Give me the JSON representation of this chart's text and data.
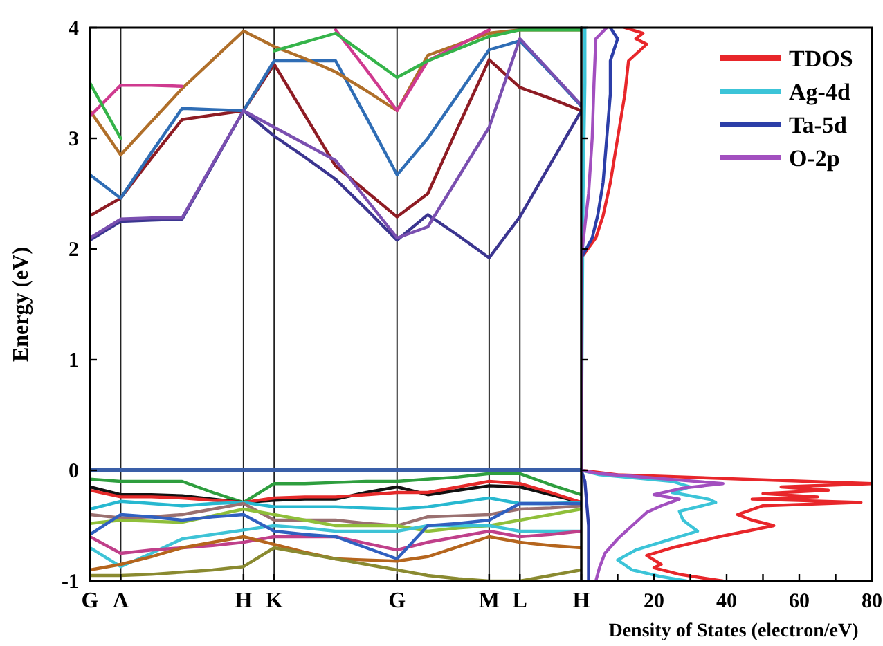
{
  "chart_data": [
    {
      "type": "line",
      "ylabel": "Energy (eV)",
      "ylim": [
        -1,
        4
      ],
      "yticks": [
        -1,
        0,
        1,
        2,
        3,
        4
      ],
      "categories": [
        "G",
        "Λ",
        null,
        null,
        null,
        "H",
        "K",
        null,
        null,
        null,
        "G",
        null,
        null,
        "M",
        "L",
        null,
        "H"
      ],
      "grid": "x",
      "legend": false,
      "line_style": "solid",
      "marker": "none",
      "ref_lines": [
        {
          "axis": "y",
          "value": 0,
          "color": "#3a5fa8"
        }
      ],
      "series": [
        {
          "color": "#3b3590",
          "values": [
            2.08,
            2.25,
            2.26,
            2.27,
            2.76,
            3.25,
            3.02,
            2.83,
            2.63,
            2.36,
            2.08,
            2.31,
            2.12,
            1.92,
            2.29,
            2.77,
            3.25
          ]
        },
        {
          "color": "#8e1c24",
          "values": [
            2.3,
            2.46,
            2.82,
            3.17,
            3.21,
            3.25,
            3.67,
            3.21,
            2.75,
            2.52,
            2.29,
            2.5,
            3.11,
            3.71,
            3.46,
            3.36,
            3.25
          ]
        },
        {
          "color": "#2f6db5",
          "values": [
            2.67,
            2.46,
            2.87,
            3.27,
            3.26,
            3.25,
            3.7,
            3.7,
            3.7,
            3.19,
            2.67,
            3.0,
            3.4,
            3.8,
            3.88,
            3.59,
            3.29
          ]
        },
        {
          "color": "#b06f2a",
          "values": [
            3.25,
            2.85,
            3.15,
            3.45,
            3.71,
            3.97,
            3.83,
            3.72,
            3.6,
            3.43,
            3.25,
            3.75,
            3.85,
            3.95,
            3.98,
            3.98,
            3.98
          ]
        },
        {
          "color": "#cf3a8f",
          "values": [
            3.2,
            3.48,
            3.48,
            3.47,
            null,
            null,
            null,
            null,
            3.98,
            3.62,
            3.25,
            3.7,
            3.84,
            3.98,
            null,
            null,
            null
          ]
        },
        {
          "color": "#35b44a",
          "values": [
            3.5,
            3.0,
            null,
            null,
            null,
            null,
            3.79,
            3.87,
            3.95,
            3.75,
            3.55,
            3.7,
            3.81,
            3.92,
            3.98,
            3.98,
            3.98
          ]
        },
        {
          "color": "#7a4fb0",
          "values": [
            2.1,
            2.27,
            2.28,
            2.28,
            2.77,
            3.25,
            3.1,
            2.95,
            2.8,
            2.45,
            2.1,
            2.2,
            2.65,
            3.1,
            3.9,
            3.6,
            3.3
          ]
        },
        {
          "color": "#2e9e3e",
          "values": [
            -0.08,
            -0.1,
            -0.1,
            -0.1,
            -0.2,
            -0.29,
            -0.12,
            -0.12,
            -0.11,
            -0.1,
            -0.1,
            -0.08,
            -0.06,
            -0.03,
            -0.03,
            -0.13,
            -0.22
          ]
        },
        {
          "color": "#111111",
          "values": [
            -0.15,
            -0.22,
            -0.22,
            -0.23,
            -0.26,
            -0.29,
            -0.27,
            -0.26,
            -0.26,
            -0.2,
            -0.15,
            -0.22,
            -0.18,
            -0.14,
            -0.15,
            -0.22,
            -0.29
          ]
        },
        {
          "color": "#e52a2a",
          "values": [
            -0.18,
            -0.24,
            -0.24,
            -0.25,
            -0.27,
            -0.29,
            -0.25,
            -0.24,
            -0.24,
            -0.22,
            -0.2,
            -0.2,
            -0.15,
            -0.1,
            -0.12,
            -0.2,
            -0.29
          ]
        },
        {
          "color": "#27b8d0",
          "values": [
            -0.35,
            -0.28,
            -0.3,
            -0.32,
            -0.3,
            -0.29,
            -0.33,
            -0.33,
            -0.33,
            -0.34,
            -0.35,
            -0.33,
            -0.29,
            -0.25,
            -0.3,
            -0.3,
            -0.29
          ]
        },
        {
          "color": "#9a7070",
          "values": [
            -0.4,
            -0.43,
            -0.42,
            -0.4,
            -0.35,
            -0.3,
            -0.45,
            -0.45,
            -0.45,
            -0.48,
            -0.5,
            -0.42,
            -0.41,
            -0.4,
            -0.35,
            -0.34,
            -0.32
          ]
        },
        {
          "color": "#8fbf3a",
          "values": [
            -0.48,
            -0.45,
            -0.46,
            -0.47,
            -0.41,
            -0.35,
            -0.4,
            -0.45,
            -0.5,
            -0.5,
            -0.5,
            -0.55,
            -0.52,
            -0.5,
            -0.45,
            -0.4,
            -0.35
          ]
        },
        {
          "color": "#3ec3d6",
          "values": [
            -0.7,
            -0.87,
            -0.75,
            -0.62,
            -0.58,
            -0.54,
            -0.5,
            -0.52,
            -0.55,
            -0.55,
            -0.55,
            -0.5,
            -0.5,
            -0.5,
            -0.55,
            -0.55,
            -0.55
          ]
        },
        {
          "color": "#c0408a",
          "values": [
            -0.6,
            -0.75,
            -0.72,
            -0.7,
            -0.68,
            -0.65,
            -0.6,
            -0.6,
            -0.6,
            -0.66,
            -0.72,
            -0.65,
            -0.6,
            -0.55,
            -0.6,
            -0.58,
            -0.55
          ]
        },
        {
          "color": "#3060c0",
          "values": [
            -0.58,
            -0.4,
            -0.42,
            -0.45,
            -0.42,
            -0.4,
            -0.55,
            -0.58,
            -0.6,
            -0.7,
            -0.8,
            -0.5,
            -0.48,
            -0.45,
            -0.3,
            -0.3,
            -0.3
          ]
        },
        {
          "color": "#b5651d",
          "values": [
            -0.9,
            -0.85,
            -0.78,
            -0.7,
            -0.65,
            -0.6,
            -0.67,
            -0.74,
            -0.8,
            -0.81,
            -0.82,
            -0.78,
            -0.69,
            -0.6,
            -0.65,
            -0.68,
            -0.7
          ]
        },
        {
          "color": "#8a8a30",
          "values": [
            -0.95,
            -0.95,
            -0.94,
            -0.92,
            -0.9,
            -0.87,
            -0.7,
            -0.75,
            -0.8,
            -0.85,
            -0.9,
            -0.95,
            -0.98,
            -1.0,
            -1.0,
            -0.95,
            -0.9
          ]
        }
      ]
    },
    {
      "type": "line",
      "xlabel": "Density of States (electron/eV)",
      "xlim": [
        0,
        80
      ],
      "ylim": [
        -1,
        4
      ],
      "xticks": [
        {
          "value": 10,
          "label": null
        },
        20,
        {
          "value": 30,
          "label": null
        },
        40,
        {
          "value": 50,
          "label": null
        },
        60,
        {
          "value": 70,
          "label": null
        },
        80
      ],
      "yticks": [
        -1,
        0,
        1,
        2,
        3,
        4
      ],
      "tick_labels": "x",
      "legend": "top right",
      "line_style": "solid",
      "marker": "none",
      "series": [
        {
          "name": "TDOS",
          "color": "#e8262a",
          "x": [
            39,
            27,
            20,
            22,
            18,
            25,
            38,
            53,
            47,
            43,
            50,
            77,
            47,
            65,
            50,
            68,
            55,
            80,
            10,
            0,
            0,
            4,
            6,
            8,
            10,
            12,
            13,
            18,
            15,
            17,
            12
          ],
          "values": [
            -1.0,
            -0.94,
            -0.88,
            -0.85,
            -0.77,
            -0.7,
            -0.6,
            -0.5,
            -0.45,
            -0.4,
            -0.32,
            -0.29,
            -0.26,
            -0.24,
            -0.21,
            -0.18,
            -0.15,
            -0.12,
            -0.04,
            0,
            1.92,
            2.1,
            2.3,
            2.6,
            3.0,
            3.4,
            3.7,
            3.85,
            3.9,
            3.95,
            4.0
          ]
        },
        {
          "name": "Ag-4d",
          "color": "#3cc4d8",
          "x": [
            29,
            22,
            14,
            10,
            15,
            25,
            32,
            28,
            27,
            37,
            35,
            25,
            30,
            25,
            5,
            0,
            0.5,
            1,
            1
          ],
          "values": [
            -1.0,
            -0.96,
            -0.9,
            -0.81,
            -0.72,
            -0.62,
            -0.55,
            -0.45,
            -0.37,
            -0.29,
            -0.26,
            -0.2,
            -0.15,
            -0.1,
            -0.04,
            0,
            2.5,
            3.5,
            4.0
          ]
        },
        {
          "name": "Ta-5d",
          "color": "#2c3ea8",
          "x": [
            2,
            2,
            1,
            0,
            0,
            3,
            4.5,
            6,
            7,
            8,
            8,
            10,
            8
          ],
          "values": [
            -1.0,
            -0.5,
            -0.1,
            0,
            1.92,
            2.1,
            2.3,
            2.6,
            3.0,
            3.4,
            3.7,
            3.9,
            4.0
          ]
        },
        {
          "name": "O-2p",
          "color": "#a24fbf",
          "x": [
            4,
            5,
            6.5,
            10,
            14,
            18,
            22,
            27,
            20,
            28,
            39,
            5,
            0,
            0,
            2,
            3,
            3.5,
            4,
            7
          ],
          "values": [
            -1.0,
            -0.88,
            -0.75,
            -0.62,
            -0.5,
            -0.38,
            -0.32,
            -0.26,
            -0.22,
            -0.16,
            -0.12,
            -0.03,
            0,
            1.92,
            2.5,
            3.0,
            3.5,
            3.9,
            4.0
          ]
        }
      ]
    }
  ]
}
